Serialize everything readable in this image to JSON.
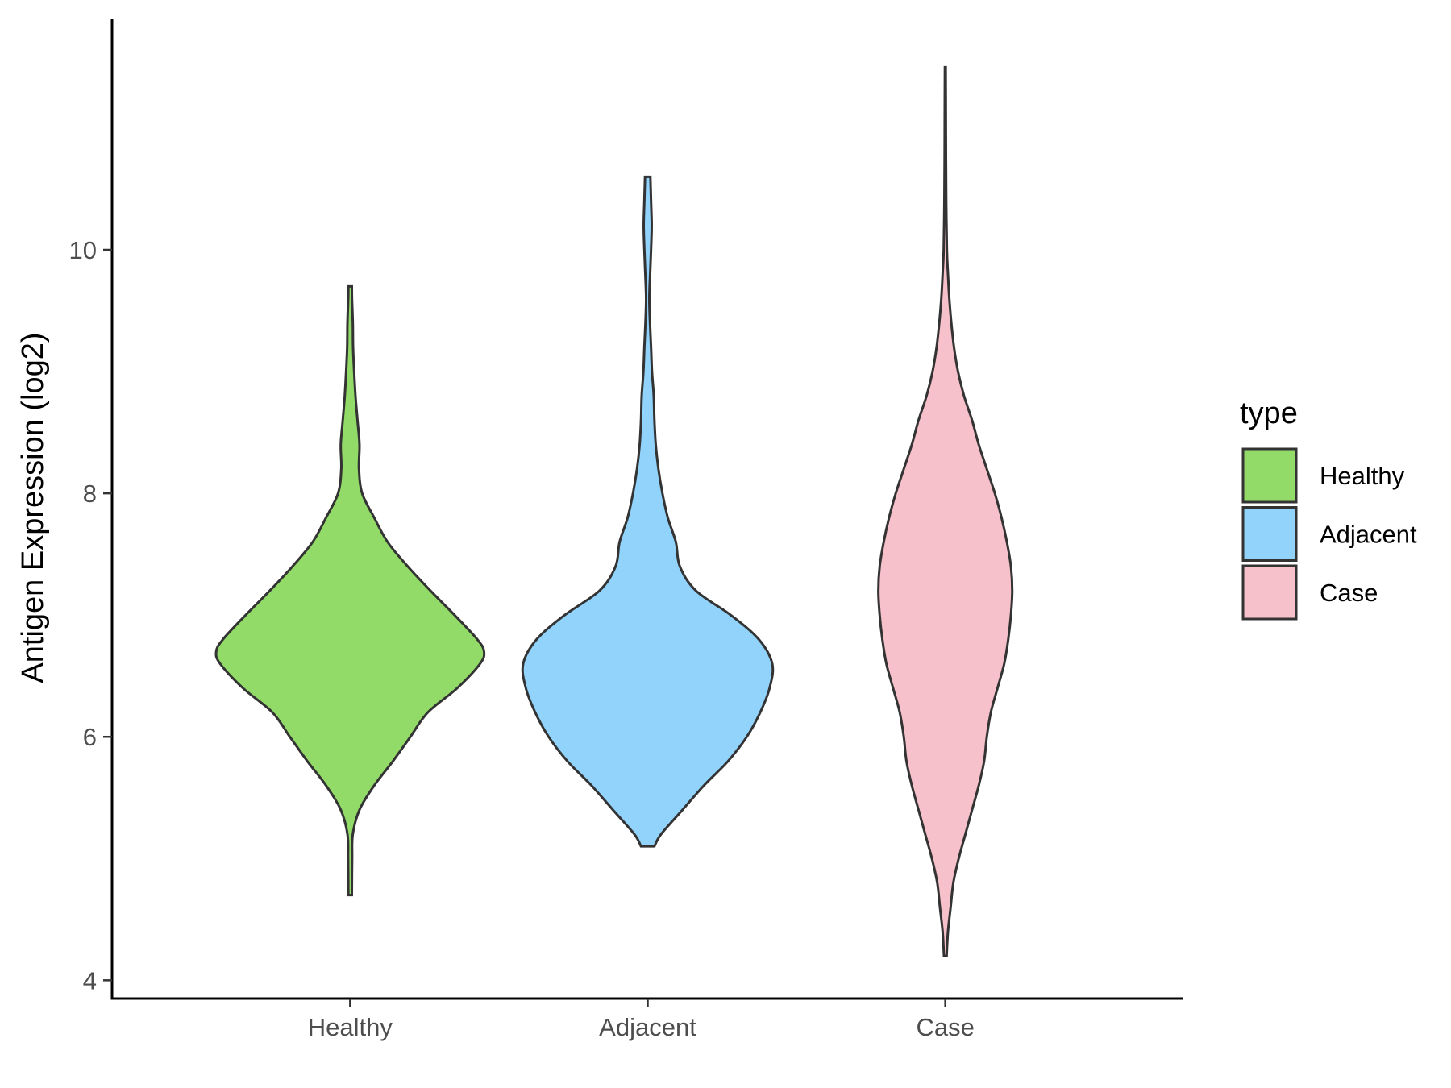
{
  "chart_data": {
    "type": "violin",
    "title": "",
    "xlabel": "",
    "ylabel": "Antigen Expression (log2)",
    "ylim": [
      3.85,
      11.9
    ],
    "yticks": [
      4,
      6,
      8,
      10
    ],
    "categories": [
      "Healthy",
      "Adjacent",
      "Case"
    ],
    "legend": {
      "title": "type",
      "position": "right",
      "entries": [
        "Healthy",
        "Adjacent",
        "Case"
      ]
    },
    "colors": {
      "Healthy": "#93DB69",
      "Adjacent": "#92D3FC",
      "Case": "#F7C1CB",
      "outline": "#333333"
    },
    "series": [
      {
        "name": "Healthy",
        "min": 4.7,
        "max": 9.7,
        "profile": [
          [
            4.7,
            0.013
          ],
          [
            5.0,
            0.015
          ],
          [
            5.2,
            0.02
          ],
          [
            5.4,
            0.07
          ],
          [
            5.6,
            0.18
          ],
          [
            5.8,
            0.32
          ],
          [
            6.0,
            0.45
          ],
          [
            6.2,
            0.58
          ],
          [
            6.4,
            0.8
          ],
          [
            6.6,
            0.97
          ],
          [
            6.7,
            1.0
          ],
          [
            6.8,
            0.95
          ],
          [
            7.0,
            0.78
          ],
          [
            7.2,
            0.6
          ],
          [
            7.4,
            0.43
          ],
          [
            7.6,
            0.28
          ],
          [
            7.8,
            0.18
          ],
          [
            8.0,
            0.09
          ],
          [
            8.2,
            0.066
          ],
          [
            8.4,
            0.07
          ],
          [
            8.6,
            0.055
          ],
          [
            8.8,
            0.04
          ],
          [
            9.0,
            0.03
          ],
          [
            9.2,
            0.022
          ],
          [
            9.4,
            0.02
          ],
          [
            9.6,
            0.014
          ],
          [
            9.7,
            0.013
          ]
        ]
      },
      {
        "name": "Adjacent",
        "min": 5.1,
        "max": 10.6,
        "profile": [
          [
            5.1,
            0.05
          ],
          [
            5.2,
            0.1
          ],
          [
            5.4,
            0.26
          ],
          [
            5.6,
            0.42
          ],
          [
            5.8,
            0.6
          ],
          [
            6.0,
            0.74
          ],
          [
            6.2,
            0.84
          ],
          [
            6.4,
            0.91
          ],
          [
            6.6,
            0.93
          ],
          [
            6.8,
            0.83
          ],
          [
            7.0,
            0.62
          ],
          [
            7.2,
            0.36
          ],
          [
            7.4,
            0.24
          ],
          [
            7.6,
            0.21
          ],
          [
            7.8,
            0.15
          ],
          [
            8.0,
            0.11
          ],
          [
            8.2,
            0.08
          ],
          [
            8.4,
            0.06
          ],
          [
            8.6,
            0.05
          ],
          [
            8.8,
            0.045
          ],
          [
            9.0,
            0.032
          ],
          [
            9.2,
            0.025
          ],
          [
            9.4,
            0.017
          ],
          [
            9.6,
            0.012
          ],
          [
            9.8,
            0.018
          ],
          [
            10.0,
            0.025
          ],
          [
            10.2,
            0.03
          ],
          [
            10.4,
            0.025
          ],
          [
            10.6,
            0.02
          ]
        ]
      },
      {
        "name": "Case",
        "min": 4.2,
        "max": 11.5,
        "profile": [
          [
            4.2,
            0.01
          ],
          [
            4.4,
            0.02
          ],
          [
            4.6,
            0.04
          ],
          [
            4.8,
            0.06
          ],
          [
            5.0,
            0.1
          ],
          [
            5.2,
            0.15
          ],
          [
            5.4,
            0.2
          ],
          [
            5.6,
            0.25
          ],
          [
            5.8,
            0.29
          ],
          [
            6.0,
            0.31
          ],
          [
            6.2,
            0.34
          ],
          [
            6.4,
            0.39
          ],
          [
            6.6,
            0.44
          ],
          [
            6.8,
            0.47
          ],
          [
            7.0,
            0.49
          ],
          [
            7.2,
            0.5
          ],
          [
            7.4,
            0.49
          ],
          [
            7.6,
            0.46
          ],
          [
            7.8,
            0.42
          ],
          [
            8.0,
            0.37
          ],
          [
            8.2,
            0.31
          ],
          [
            8.4,
            0.25
          ],
          [
            8.6,
            0.2
          ],
          [
            8.8,
            0.14
          ],
          [
            9.0,
            0.095
          ],
          [
            9.2,
            0.065
          ],
          [
            9.4,
            0.045
          ],
          [
            9.6,
            0.03
          ],
          [
            9.8,
            0.02
          ],
          [
            10.0,
            0.012
          ],
          [
            10.4,
            0.007
          ],
          [
            10.8,
            0.005
          ],
          [
            11.2,
            0.004
          ],
          [
            11.5,
            0.003
          ]
        ]
      }
    ]
  }
}
